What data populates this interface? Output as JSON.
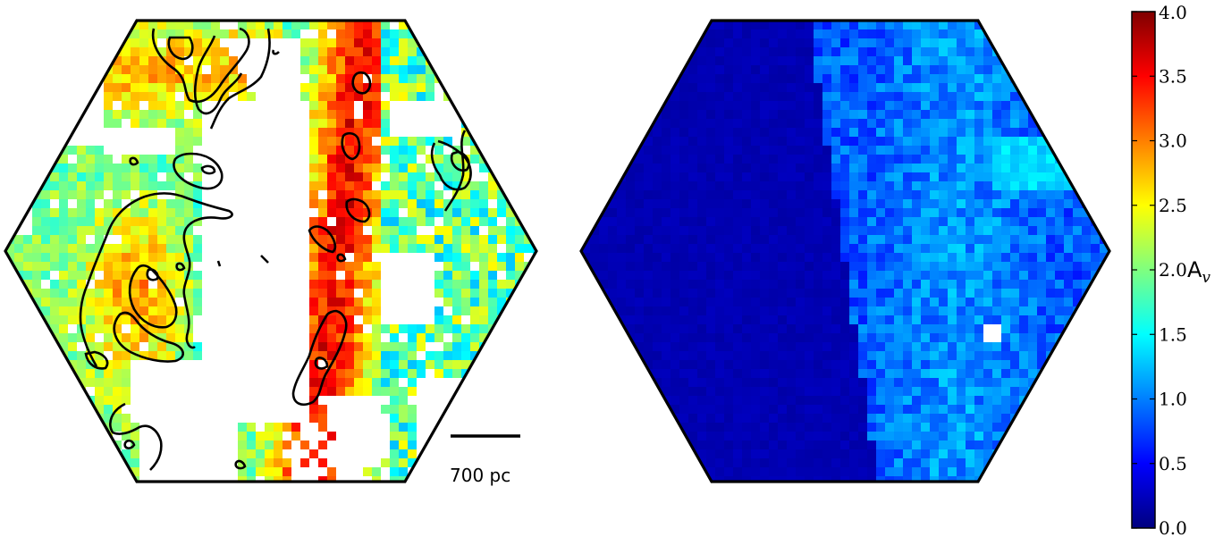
{
  "chart_data": {
    "type": "heatmap",
    "title": "",
    "panels": [
      {
        "name": "left-map",
        "description_of_field": "pixelated A_v map, masked (white) where no value",
        "contours": true
      },
      {
        "name": "right-map",
        "contours": true
      }
    ],
    "colorbar": {
      "label": "A",
      "label_subscript": "v",
      "range": [
        0.0,
        4.0
      ],
      "ticks": [
        "0.0",
        "0.5",
        "1.0",
        "1.5",
        "2.0",
        "2.5",
        "3.0",
        "3.5",
        "4.0"
      ],
      "colormap": "jet",
      "colors": [
        "#00007f",
        "#0000ff",
        "#007fff",
        "#00ffff",
        "#7fff7f",
        "#ffff00",
        "#ff7f00",
        "#ff0000",
        "#7f0000"
      ]
    },
    "scale_bar": {
      "label": "700 pc"
    }
  }
}
